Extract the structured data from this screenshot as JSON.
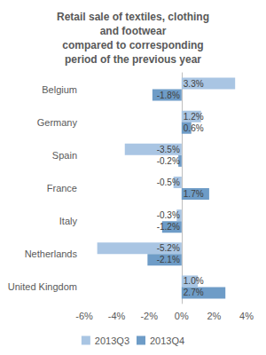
{
  "chart_data": {
    "type": "bar",
    "title": "Retail sale of textiles, clothing\nand footwear\ncompared to corresponding\nperiod of the previous year",
    "orientation": "horizontal",
    "categories": [
      "Belgium",
      "Germany",
      "Spain",
      "France",
      "Italy",
      "Netherlands",
      "United Kingdom"
    ],
    "series": [
      {
        "name": "2013Q3",
        "color": "#a9c5e3",
        "values": [
          3.3,
          1.2,
          -3.5,
          -0.5,
          -0.3,
          -5.2,
          1.0
        ],
        "value_labels": [
          "3.3%",
          "1.2%",
          "-3.5%",
          "-0.5%",
          "-0.3%",
          "-5.2%",
          "1.0%"
        ]
      },
      {
        "name": "2013Q4",
        "color": "#6e9cc7",
        "values": [
          -1.8,
          0.6,
          -0.2,
          1.7,
          -1.2,
          -2.1,
          2.7
        ],
        "value_labels": [
          "-1.8%",
          "0.6%",
          "-0.2%",
          "1.7%",
          "-1.2%",
          "-2.1%",
          "2.7%"
        ]
      }
    ],
    "xlim": [
      -6,
      4
    ],
    "xticks": [
      {
        "value": -6,
        "label": "-6%"
      },
      {
        "value": -4,
        "label": "-4%"
      },
      {
        "value": -2,
        "label": "-2%"
      },
      {
        "value": 0,
        "label": "0%"
      },
      {
        "value": 2,
        "label": "2%"
      },
      {
        "value": 4,
        "label": "4%"
      }
    ],
    "grid": false,
    "legend": "bottom",
    "data_labels": true
  }
}
